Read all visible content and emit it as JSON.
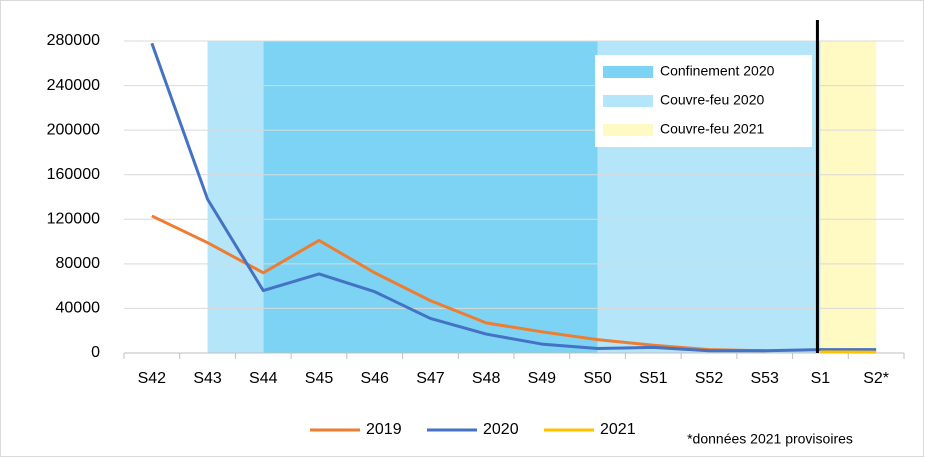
{
  "chart_data": {
    "type": "line",
    "categories": [
      "S42",
      "S43",
      "S44",
      "S45",
      "S46",
      "S47",
      "S48",
      "S49",
      "S50",
      "S51",
      "S52",
      "S53",
      "S1",
      "S2*"
    ],
    "series": [
      {
        "name": "2019",
        "color": "#ed7d31",
        "values": [
          123000,
          99000,
          72000,
          101000,
          72000,
          47000,
          27000,
          19000,
          12000,
          7000,
          3000,
          2000,
          null,
          null
        ]
      },
      {
        "name": "2020",
        "color": "#4472c4",
        "values": [
          278000,
          138000,
          56000,
          71000,
          55000,
          31000,
          17000,
          8000,
          4000,
          5000,
          2000,
          2000,
          3000,
          3000
        ]
      },
      {
        "name": "2021",
        "color": "#ffc000",
        "values": [
          null,
          null,
          null,
          null,
          null,
          null,
          null,
          null,
          null,
          null,
          null,
          null,
          1000,
          800
        ]
      }
    ],
    "bands": [
      {
        "name": "Confinement 2020",
        "color": "#7dd3f3",
        "spans": [
          [
            "S44",
            "S50"
          ]
        ]
      },
      {
        "name": "Couvre-feu 2020",
        "color": "#b4e5f8",
        "spans": [
          [
            "S43",
            "S44"
          ],
          [
            "S50",
            "S1"
          ]
        ]
      },
      {
        "name": "Couvre-feu 2021",
        "color": "#fff9c4",
        "spans": [
          [
            "S1",
            "S2*"
          ]
        ]
      }
    ],
    "marker_line": "S1",
    "ylim": [
      0,
      280000
    ],
    "yticks": [
      0,
      40000,
      80000,
      120000,
      160000,
      200000,
      240000,
      280000
    ],
    "grid": true,
    "note": "*données 2021 provisoires"
  }
}
